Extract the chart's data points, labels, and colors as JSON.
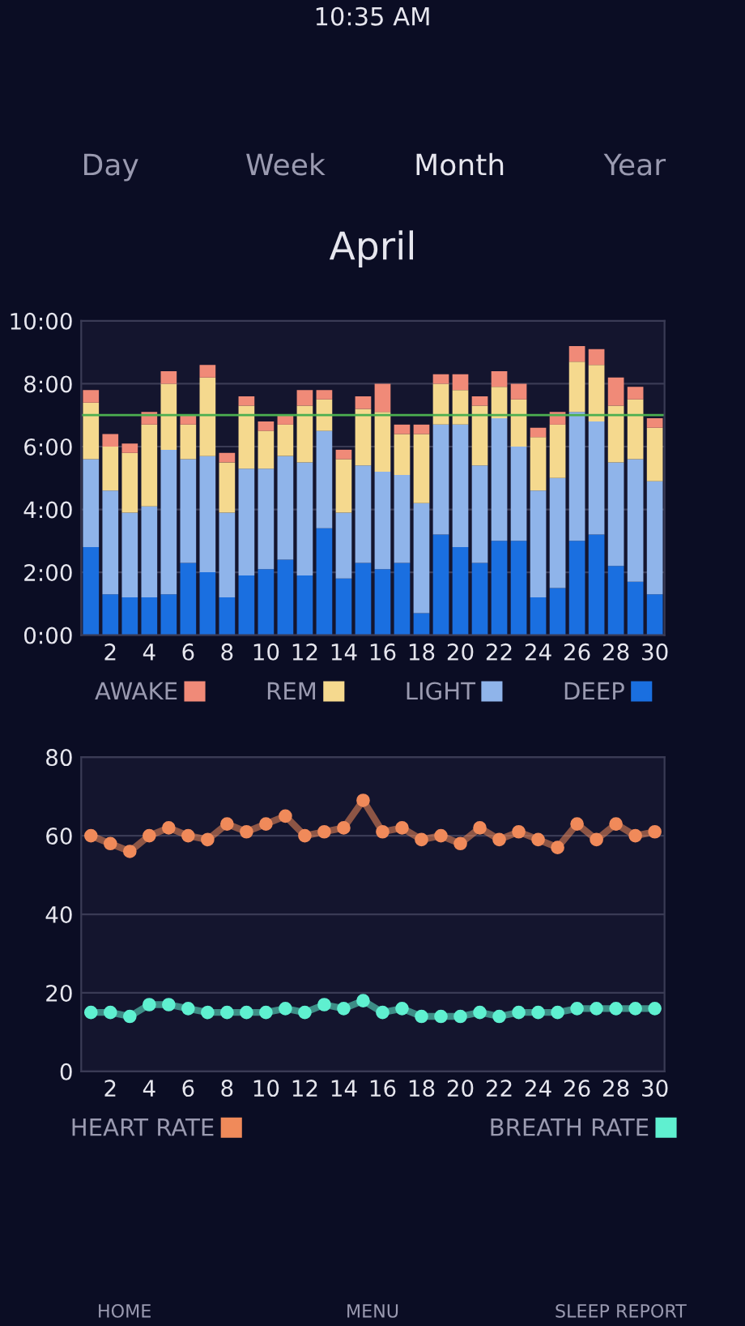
{
  "chart_data": [
    {
      "type": "other",
      "annotations": [
        "10:35 AM",
        "Day",
        "Week",
        "Month",
        "Year"
      ]
    },
    {
      "type": "bar",
      "title": "April",
      "stacked": true,
      "categories": [
        null,
        "2",
        null,
        "4",
        null,
        "6",
        null,
        "8",
        null,
        "10",
        null,
        "12",
        null,
        "14",
        null,
        "16",
        null,
        "18",
        null,
        "20",
        null,
        "22",
        null,
        "24",
        null,
        "26",
        null,
        "28",
        null,
        "30"
      ],
      "series": [
        {
          "name": "DEEP",
          "color": "#1a6fe0",
          "values": [
            2.8,
            1.3,
            1.2,
            1.2,
            1.3,
            2.3,
            2.0,
            1.2,
            1.9,
            2.1,
            2.4,
            1.9,
            3.4,
            1.8,
            2.3,
            2.1,
            2.3,
            0.7,
            3.2,
            2.8,
            2.3,
            3.0,
            3.0,
            1.2,
            1.5,
            3.0,
            3.2,
            2.2,
            1.7,
            1.3
          ]
        },
        {
          "name": "LIGHT",
          "color": "#8fb4ea",
          "values": [
            2.8,
            3.3,
            2.7,
            2.9,
            4.6,
            3.3,
            3.7,
            2.7,
            3.4,
            3.2,
            3.3,
            3.6,
            3.1,
            2.1,
            3.1,
            3.1,
            2.8,
            3.5,
            3.5,
            3.9,
            3.1,
            3.9,
            3.0,
            3.4,
            3.5,
            4.1,
            3.6,
            3.3,
            3.9,
            3.6
          ]
        },
        {
          "name": "REM",
          "color": "#f5d98e",
          "values": [
            1.8,
            1.4,
            1.9,
            2.6,
            2.1,
            1.1,
            2.5,
            1.6,
            2.0,
            1.2,
            1.0,
            1.8,
            1.0,
            1.7,
            1.8,
            1.9,
            1.3,
            2.2,
            1.3,
            1.1,
            1.9,
            1.0,
            1.5,
            1.7,
            1.7,
            1.6,
            1.8,
            1.8,
            1.9,
            1.7
          ]
        },
        {
          "name": "AWAKE",
          "color": "#f08a78",
          "values": [
            0.4,
            0.4,
            0.3,
            0.4,
            0.4,
            0.3,
            0.4,
            0.3,
            0.3,
            0.3,
            0.3,
            0.5,
            0.3,
            0.3,
            0.4,
            0.9,
            0.3,
            0.3,
            0.3,
            0.5,
            0.3,
            0.5,
            0.5,
            0.3,
            0.4,
            0.5,
            0.5,
            0.9,
            0.4,
            0.3
          ]
        }
      ],
      "ylim": [
        0,
        10
      ],
      "yticks": [
        {
          "value": 0,
          "label": "0:00"
        },
        {
          "value": 2,
          "label": "2:00"
        },
        {
          "value": 4,
          "label": "4:00"
        },
        {
          "value": 6,
          "label": "6:00"
        },
        {
          "value": 8,
          "label": "8:00"
        },
        {
          "value": 10,
          "label": "10:00"
        }
      ],
      "ref_lines": [
        {
          "axis": "y",
          "value": 7,
          "color": "#4caf50"
        }
      ],
      "grid": "y",
      "legend": "bottom"
    },
    {
      "type": "line",
      "marker": "circle",
      "x": [
        1,
        2,
        3,
        4,
        5,
        6,
        7,
        8,
        9,
        10,
        11,
        12,
        13,
        14,
        15,
        16,
        17,
        18,
        19,
        20,
        21,
        22,
        23,
        24,
        25,
        26,
        27,
        28,
        29,
        30
      ],
      "series": [
        {
          "name": "HEART RATE",
          "color": "#f08a5a",
          "values": [
            60,
            58,
            56,
            60,
            62,
            60,
            59,
            63,
            61,
            63,
            65,
            60,
            61,
            62,
            69,
            61,
            62,
            59,
            60,
            58,
            62,
            59,
            61,
            59,
            57,
            63,
            59,
            63,
            60,
            61
          ]
        },
        {
          "name": "BREATH RATE",
          "color": "#5ff0d0",
          "values": [
            15,
            15,
            14,
            17,
            17,
            16,
            15,
            15,
            15,
            15,
            16,
            15,
            17,
            16,
            18,
            15,
            16,
            14,
            14,
            14,
            15,
            14,
            15,
            15,
            15,
            16,
            16,
            16,
            16,
            16
          ]
        }
      ],
      "xlim": [
        0.5,
        30.5
      ],
      "xticks": [
        2,
        4,
        6,
        8,
        10,
        12,
        14,
        16,
        18,
        20,
        22,
        24,
        26,
        28,
        30
      ],
      "ylim": [
        0,
        80
      ],
      "yticks": [
        0,
        20,
        40,
        60,
        80
      ],
      "grid": "y",
      "legend": "bottom"
    },
    {
      "type": "other",
      "annotations": [
        "HOME",
        "MENU",
        "SLEEP REPORT"
      ]
    }
  ]
}
